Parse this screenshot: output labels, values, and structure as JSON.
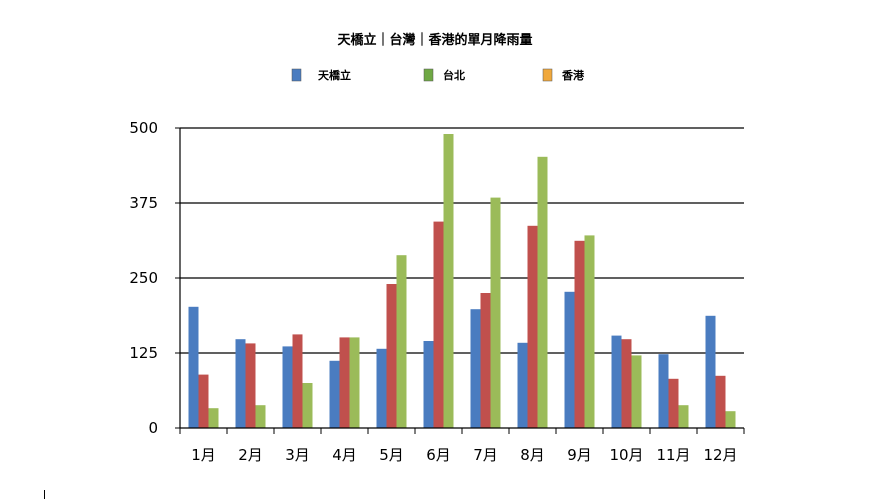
{
  "chart_data": {
    "type": "bar",
    "title": "天橋立｜台灣｜香港的單月降雨量",
    "categories": [
      "1月",
      "2月",
      "3月",
      "4月",
      "5月",
      "6月",
      "7月",
      "8月",
      "9月",
      "10月",
      "11月",
      "12月"
    ],
    "series": [
      {
        "name": "天橋立",
        "color": "#4a7cc0",
        "values": [
          202,
          148,
          136,
          112,
          132,
          145,
          198,
          142,
          227,
          154,
          123,
          187
        ]
      },
      {
        "name": "台北",
        "color": "#6fa844",
        "values": [
          89,
          141,
          156,
          151,
          240,
          344,
          225,
          337,
          312,
          148,
          82,
          87
        ]
      },
      {
        "name": "香港",
        "color": "#f0a83c",
        "values": [
          33,
          38,
          75,
          151,
          288,
          490,
          384,
          452,
          321,
          121,
          38,
          28
        ]
      }
    ],
    "bar_colors": [
      "#4a7cc0",
      "#c0504d",
      "#9bbb59"
    ],
    "ylim": [
      0,
      500
    ],
    "yticks": [
      0,
      125,
      250,
      375,
      500
    ],
    "grid": true,
    "legend_placement": "top",
    "xlabel": "",
    "ylabel": ""
  }
}
